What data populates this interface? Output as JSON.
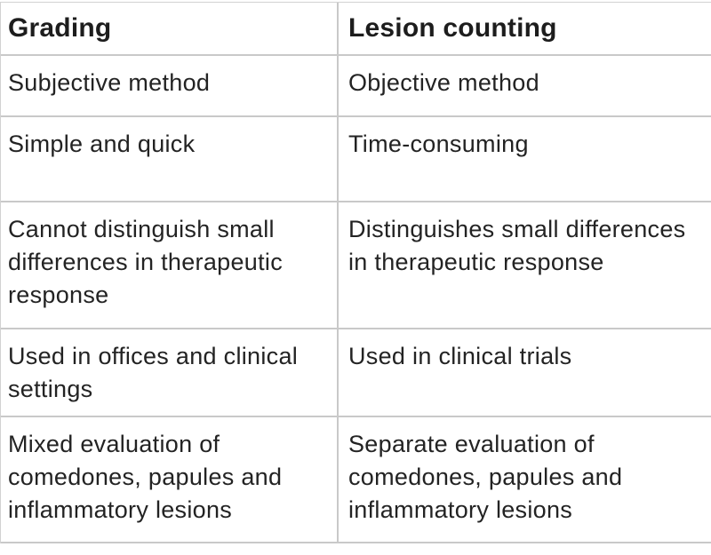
{
  "table": {
    "headers": [
      "Grading",
      "Lesion counting"
    ],
    "rows": [
      [
        "Subjective method",
        "Objective method"
      ],
      [
        "Simple and quick",
        "Time-consuming"
      ],
      [
        "Cannot distinguish small\ndifferences in therapeutic\nresponse",
        "Distinguishes small differences\nin therapeutic response"
      ],
      [
        "Used in offices and clinical\nsettings",
        "Used in clinical trials"
      ],
      [
        "Mixed evaluation of\ncomedones, papules and\ninflammatory lesions",
        "Separate evaluation of\ncomedones, papules and\ninflammatory lesions"
      ]
    ],
    "border_color": "#c9c9c9",
    "text_color": "#232323"
  }
}
